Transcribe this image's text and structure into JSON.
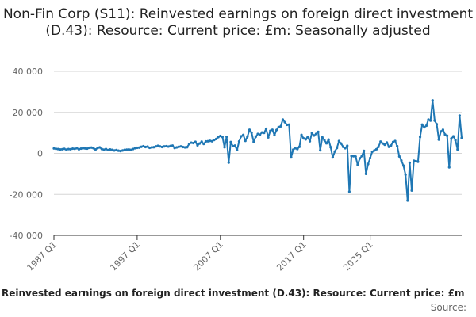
{
  "chart_data": {
    "type": "line",
    "title": "Non-Fin Corp (S11): Reinvested earnings on foreign direct investment (D.43): Resource: Current price: £m: Seasonally adjusted",
    "xlabel": "",
    "ylabel": "",
    "ylim": [
      -40000,
      40000
    ],
    "y_ticks": [
      -40000,
      -20000,
      0,
      20000,
      40000
    ],
    "y_tick_labels": [
      "-40 000",
      "-20 000",
      "0",
      "20 000",
      "40 000"
    ],
    "x_tick_labels": [
      "1987 Q1",
      "1997 Q1",
      "2007 Q1",
      "2017 Q1",
      "2025 Q1"
    ],
    "x_tick_positions": [
      0,
      40,
      80,
      120,
      152
    ],
    "grid": "horizontal",
    "x_start": "1987 Q1",
    "series": [
      {
        "color": "#1f77b4",
        "values": [
          2400,
          2200,
          2100,
          1900,
          2000,
          2200,
          1800,
          2100,
          2000,
          2300,
          2200,
          2500,
          2000,
          2300,
          2500,
          2400,
          2300,
          2700,
          2800,
          2500,
          1900,
          2600,
          2900,
          2100,
          1800,
          2100,
          1600,
          1900,
          1700,
          1400,
          1600,
          1300,
          1100,
          1400,
          1700,
          1800,
          1900,
          1700,
          2100,
          2500,
          2700,
          2800,
          3200,
          3500,
          3100,
          3300,
          2700,
          2900,
          3000,
          3400,
          3700,
          3400,
          3100,
          3400,
          3500,
          3300,
          3600,
          3800,
          2600,
          2900,
          3200,
          3400,
          3100,
          2900,
          3000,
          4600,
          5200,
          5000,
          5600,
          3900,
          4800,
          5700,
          4600,
          5800,
          5900,
          6100,
          5900,
          6500,
          7000,
          7900,
          8500,
          8000,
          3000,
          8100,
          -4500,
          5500,
          3500,
          3800,
          1600,
          5800,
          8300,
          9000,
          6100,
          8200,
          11500,
          10100,
          5600,
          8100,
          9500,
          9100,
          10200,
          10000,
          12000,
          7800,
          11000,
          11500,
          8900,
          11400,
          12800,
          13200,
          16500,
          15200,
          13900,
          14000,
          -2000,
          1800,
          2500,
          2100,
          3200,
          9000,
          7300,
          6800,
          8100,
          5900,
          9900,
          8700,
          9500,
          10500,
          1500,
          7800,
          6500,
          4900,
          6700,
          3000,
          -2000,
          900,
          2600,
          6000,
          4800,
          3200,
          2500,
          3700,
          -18700,
          -1300,
          -1400,
          -1600,
          -5600,
          -2500,
          -1300,
          1200,
          -10000,
          -5200,
          -2300,
          800,
          1400,
          2000,
          3200,
          5700,
          4800,
          4200,
          5300,
          3200,
          3800,
          5500,
          6000,
          3500,
          -1500,
          -3500,
          -6000,
          -10400,
          -23000,
          -4600,
          -18100,
          -3600,
          -3800,
          -4100,
          8000,
          14000,
          12700,
          13500,
          16500,
          16000,
          25800,
          16000,
          14200,
          6700,
          10700,
          11500,
          9200,
          8600,
          -6800,
          7200,
          8300,
          6400,
          1900,
          18400,
          7500
        ]
      }
    ]
  },
  "footer": {
    "series_label": "Reinvested earnings on foreign direct investment (D.43): Resource: Current price: £m",
    "source_label": "Source:"
  }
}
